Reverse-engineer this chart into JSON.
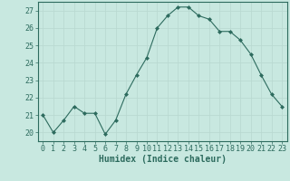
{
  "x": [
    0,
    1,
    2,
    3,
    4,
    5,
    6,
    7,
    8,
    9,
    10,
    11,
    12,
    13,
    14,
    15,
    16,
    17,
    18,
    19,
    20,
    21,
    22,
    23
  ],
  "y": [
    21.0,
    20.0,
    20.7,
    21.5,
    21.1,
    21.1,
    19.9,
    20.7,
    22.2,
    23.3,
    24.3,
    26.0,
    26.7,
    27.2,
    27.2,
    26.7,
    26.5,
    25.8,
    25.8,
    25.3,
    24.5,
    23.3,
    22.2,
    21.5
  ],
  "line_color": "#2d6b5e",
  "marker_color": "#2d6b5e",
  "bg_color": "#c8e8e0",
  "grid_color": "#b8d8d0",
  "xlabel": "Humidex (Indice chaleur)",
  "xlim": [
    -0.5,
    23.5
  ],
  "ylim": [
    19.5,
    27.5
  ],
  "yticks": [
    20,
    21,
    22,
    23,
    24,
    25,
    26,
    27
  ],
  "xticks": [
    0,
    1,
    2,
    3,
    4,
    5,
    6,
    7,
    8,
    9,
    10,
    11,
    12,
    13,
    14,
    15,
    16,
    17,
    18,
    19,
    20,
    21,
    22,
    23
  ],
  "tick_color": "#2d6b5e",
  "label_fontsize": 7.0,
  "tick_fontsize": 6.0,
  "spine_color": "#2d6b5e"
}
